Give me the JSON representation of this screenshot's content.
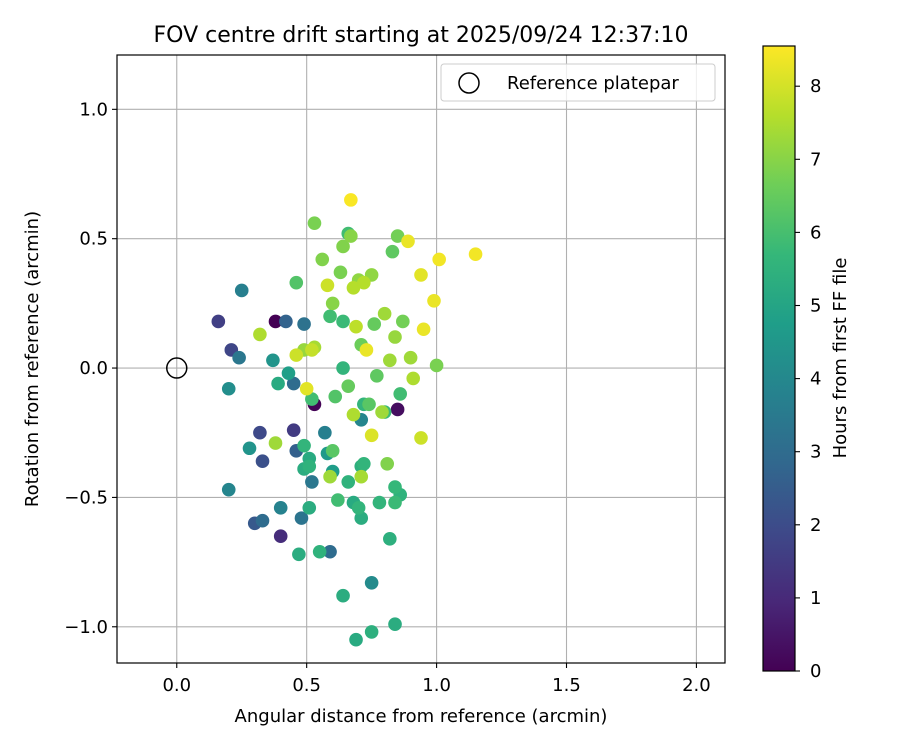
{
  "chart_data": {
    "type": "scatter",
    "title": "FOV centre drift starting at 2025/09/24 12:37:10",
    "xlabel": "Angular distance from reference (arcmin)",
    "ylabel": "Rotation from reference (arcmin)",
    "xlim": [
      -0.23,
      2.11
    ],
    "ylim": [
      -1.14,
      1.21
    ],
    "xticks": [
      0.0,
      0.5,
      1.0,
      1.5,
      2.0
    ],
    "xtick_labels": [
      "0.0",
      "0.5",
      "1.0",
      "1.5",
      "2.0"
    ],
    "yticks": [
      -1.0,
      -0.5,
      0.0,
      0.5,
      1.0
    ],
    "ytick_labels": [
      "−1.0",
      "−0.5",
      "0.0",
      "0.5",
      "1.0"
    ],
    "grid": true,
    "legend": {
      "position": "top-right",
      "entries": [
        "Reference platepar"
      ]
    },
    "reference_point": {
      "x": 0.0,
      "y": 0.0,
      "label": "Reference platepar"
    },
    "colorbar": {
      "label": "Hours from first FF file",
      "range": [
        0,
        8.55
      ],
      "ticks": [
        0,
        1,
        2,
        3,
        4,
        5,
        6,
        7,
        8
      ],
      "tick_labels": [
        "0",
        "1",
        "2",
        "3",
        "4",
        "5",
        "6",
        "7",
        "8"
      ],
      "colormap": "viridis",
      "colormap_stops": [
        "#440154",
        "#482878",
        "#3e4989",
        "#31688e",
        "#26828e",
        "#1f9e89",
        "#35b779",
        "#6ece58",
        "#b5de2b",
        "#fde725"
      ]
    },
    "points": [
      {
        "x": 0.38,
        "y": 0.18,
        "t": 0.0
      },
      {
        "x": 0.53,
        "y": -0.14,
        "t": 0.05
      },
      {
        "x": 0.85,
        "y": -0.16,
        "t": 0.3
      },
      {
        "x": 0.4,
        "y": -0.65,
        "t": 1.1
      },
      {
        "x": 0.16,
        "y": 0.18,
        "t": 1.6
      },
      {
        "x": 0.45,
        "y": -0.24,
        "t": 1.5
      },
      {
        "x": 0.21,
        "y": 0.07,
        "t": 1.8
      },
      {
        "x": 0.32,
        "y": -0.25,
        "t": 1.9
      },
      {
        "x": 0.33,
        "y": -0.36,
        "t": 2.1
      },
      {
        "x": 0.3,
        "y": -0.6,
        "t": 2.4
      },
      {
        "x": 0.33,
        "y": -0.59,
        "t": 3.0
      },
      {
        "x": 0.42,
        "y": 0.18,
        "t": 2.7
      },
      {
        "x": 0.49,
        "y": 0.17,
        "t": 3.2
      },
      {
        "x": 0.24,
        "y": 0.04,
        "t": 3.4
      },
      {
        "x": 0.46,
        "y": -0.32,
        "t": 2.6
      },
      {
        "x": 0.45,
        "y": -0.06,
        "t": 3.0
      },
      {
        "x": 0.48,
        "y": -0.58,
        "t": 3.3
      },
      {
        "x": 0.59,
        "y": -0.71,
        "t": 3.0
      },
      {
        "x": 0.25,
        "y": 0.3,
        "t": 3.7
      },
      {
        "x": 0.2,
        "y": -0.08,
        "t": 4.2
      },
      {
        "x": 0.2,
        "y": -0.47,
        "t": 3.9
      },
      {
        "x": 0.4,
        "y": -0.54,
        "t": 3.8
      },
      {
        "x": 0.28,
        "y": -0.31,
        "t": 4.4
      },
      {
        "x": 0.57,
        "y": -0.25,
        "t": 3.7
      },
      {
        "x": 0.52,
        "y": -0.44,
        "t": 3.4
      },
      {
        "x": 0.75,
        "y": -0.83,
        "t": 4.1
      },
      {
        "x": 0.71,
        "y": -0.2,
        "t": 3.9
      },
      {
        "x": 0.37,
        "y": 0.03,
        "t": 4.4
      },
      {
        "x": 0.43,
        "y": -0.02,
        "t": 4.8
      },
      {
        "x": 0.39,
        "y": -0.06,
        "t": 5.2
      },
      {
        "x": 0.6,
        "y": -0.4,
        "t": 4.7
      },
      {
        "x": 0.58,
        "y": -0.33,
        "t": 4.6
      },
      {
        "x": 0.49,
        "y": -0.3,
        "t": 5.6
      },
      {
        "x": 0.51,
        "y": -0.35,
        "t": 5.2
      },
      {
        "x": 0.49,
        "y": -0.39,
        "t": 5.3
      },
      {
        "x": 0.51,
        "y": -0.38,
        "t": 5.5
      },
      {
        "x": 0.51,
        "y": -0.54,
        "t": 5.3
      },
      {
        "x": 0.47,
        "y": -0.72,
        "t": 5.3
      },
      {
        "x": 0.55,
        "y": -0.71,
        "t": 5.5
      },
      {
        "x": 0.64,
        "y": -0.88,
        "t": 5.3
      },
      {
        "x": 0.69,
        "y": -1.05,
        "t": 5.2
      },
      {
        "x": 0.75,
        "y": -1.02,
        "t": 5.4
      },
      {
        "x": 0.84,
        "y": -0.99,
        "t": 5.3
      },
      {
        "x": 0.82,
        "y": -0.66,
        "t": 5.4
      },
      {
        "x": 0.71,
        "y": -0.58,
        "t": 5.3
      },
      {
        "x": 0.68,
        "y": -0.52,
        "t": 5.2
      },
      {
        "x": 0.66,
        "y": -0.44,
        "t": 5.5
      },
      {
        "x": 0.71,
        "y": -0.38,
        "t": 5.4
      },
      {
        "x": 0.72,
        "y": -0.37,
        "t": 5.6
      },
      {
        "x": 0.78,
        "y": -0.52,
        "t": 5.6
      },
      {
        "x": 0.84,
        "y": -0.46,
        "t": 5.7
      },
      {
        "x": 0.86,
        "y": -0.49,
        "t": 5.5
      },
      {
        "x": 0.84,
        "y": -0.52,
        "t": 5.8
      },
      {
        "x": 0.62,
        "y": -0.51,
        "t": 5.9
      },
      {
        "x": 0.7,
        "y": -0.54,
        "t": 5.6
      },
      {
        "x": 0.8,
        "y": -0.17,
        "t": 5.8
      },
      {
        "x": 0.72,
        "y": -0.14,
        "t": 5.6
      },
      {
        "x": 0.86,
        "y": -0.1,
        "t": 5.9
      },
      {
        "x": 0.64,
        "y": 0.0,
        "t": 5.6
      },
      {
        "x": 0.52,
        "y": -0.12,
        "t": 5.9
      },
      {
        "x": 0.59,
        "y": 0.2,
        "t": 5.9
      },
      {
        "x": 0.64,
        "y": 0.18,
        "t": 5.8
      },
      {
        "x": 0.66,
        "y": 0.52,
        "t": 5.9
      },
      {
        "x": 0.61,
        "y": -0.11,
        "t": 6.2
      },
      {
        "x": 0.46,
        "y": 0.33,
        "t": 6.2
      },
      {
        "x": 0.6,
        "y": -0.32,
        "t": 6.3
      },
      {
        "x": 0.66,
        "y": -0.07,
        "t": 6.5
      },
      {
        "x": 0.74,
        "y": -0.14,
        "t": 6.3
      },
      {
        "x": 0.77,
        "y": -0.03,
        "t": 6.4
      },
      {
        "x": 0.71,
        "y": 0.09,
        "t": 6.6
      },
      {
        "x": 0.76,
        "y": 0.17,
        "t": 6.5
      },
      {
        "x": 0.83,
        "y": 0.45,
        "t": 6.4
      },
      {
        "x": 0.85,
        "y": 0.51,
        "t": 6.7
      },
      {
        "x": 0.87,
        "y": 0.18,
        "t": 6.7
      },
      {
        "x": 1.0,
        "y": 0.01,
        "t": 6.8
      },
      {
        "x": 0.53,
        "y": 0.56,
        "t": 6.8
      },
      {
        "x": 0.56,
        "y": 0.42,
        "t": 6.9
      },
      {
        "x": 0.63,
        "y": 0.37,
        "t": 6.8
      },
      {
        "x": 0.64,
        "y": 0.47,
        "t": 6.9
      },
      {
        "x": 0.67,
        "y": 0.51,
        "t": 7.0
      },
      {
        "x": 0.6,
        "y": 0.25,
        "t": 7.0
      },
      {
        "x": 0.7,
        "y": 0.34,
        "t": 7.1
      },
      {
        "x": 0.75,
        "y": 0.36,
        "t": 7.1
      },
      {
        "x": 0.8,
        "y": 0.21,
        "t": 7.3
      },
      {
        "x": 0.84,
        "y": 0.12,
        "t": 7.2
      },
      {
        "x": 0.82,
        "y": 0.03,
        "t": 7.3
      },
      {
        "x": 0.9,
        "y": 0.04,
        "t": 7.3
      },
      {
        "x": 0.91,
        "y": -0.04,
        "t": 7.5
      },
      {
        "x": 0.81,
        "y": -0.37,
        "t": 6.9
      },
      {
        "x": 0.79,
        "y": -0.17,
        "t": 7.3
      },
      {
        "x": 0.68,
        "y": -0.18,
        "t": 7.5
      },
      {
        "x": 0.59,
        "y": -0.42,
        "t": 7.3
      },
      {
        "x": 0.71,
        "y": -0.42,
        "t": 7.4
      },
      {
        "x": 0.38,
        "y": -0.29,
        "t": 7.3
      },
      {
        "x": 0.32,
        "y": 0.13,
        "t": 7.5
      },
      {
        "x": 0.49,
        "y": 0.07,
        "t": 7.2
      },
      {
        "x": 0.53,
        "y": 0.08,
        "t": 7.4
      },
      {
        "x": 0.68,
        "y": 0.31,
        "t": 7.6
      },
      {
        "x": 0.72,
        "y": 0.33,
        "t": 7.6
      },
      {
        "x": 0.69,
        "y": 0.16,
        "t": 7.7
      },
      {
        "x": 0.58,
        "y": 0.32,
        "t": 7.9
      },
      {
        "x": 0.52,
        "y": 0.07,
        "t": 7.8
      },
      {
        "x": 0.46,
        "y": 0.05,
        "t": 7.9
      },
      {
        "x": 0.5,
        "y": -0.08,
        "t": 8.2
      },
      {
        "x": 0.73,
        "y": 0.07,
        "t": 8.3
      },
      {
        "x": 0.75,
        "y": -0.26,
        "t": 8.1
      },
      {
        "x": 0.94,
        "y": -0.27,
        "t": 7.9
      },
      {
        "x": 0.89,
        "y": 0.49,
        "t": 8.3
      },
      {
        "x": 0.94,
        "y": 0.36,
        "t": 8.2
      },
      {
        "x": 0.95,
        "y": 0.15,
        "t": 8.3
      },
      {
        "x": 0.99,
        "y": 0.26,
        "t": 8.3
      },
      {
        "x": 1.01,
        "y": 0.42,
        "t": 8.4
      },
      {
        "x": 1.15,
        "y": 0.44,
        "t": 8.4
      },
      {
        "x": 0.67,
        "y": 0.65,
        "t": 8.5
      }
    ]
  }
}
